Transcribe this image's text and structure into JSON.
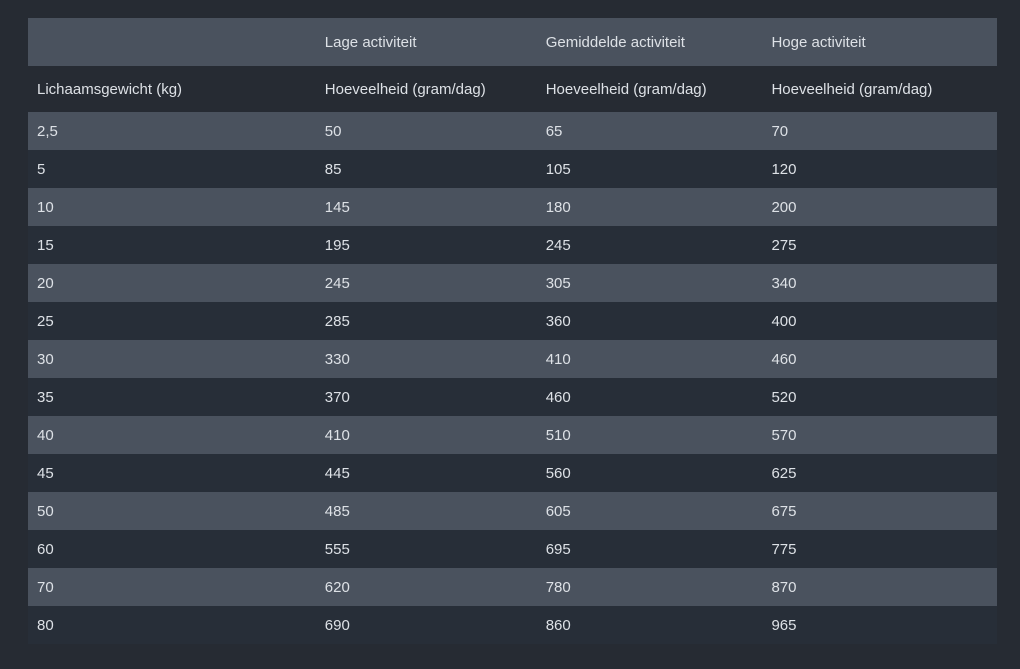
{
  "colors": {
    "page_background": "#262b33",
    "row_light": "#4a525e",
    "row_dark": "#272e38",
    "text": "#dde1e6"
  },
  "chart_data": {
    "type": "table",
    "activity_headers": [
      "",
      "Lage activiteit",
      "Gemiddelde activiteit",
      "Hoge activiteit"
    ],
    "unit_headers": [
      "Lichaamsgewicht (kg)",
      "Hoeveelheid (gram/dag)",
      "Hoeveelheid (gram/dag)",
      "Hoeveelheid (gram/dag)"
    ],
    "rows": [
      [
        "2,5",
        "50",
        "65",
        "70"
      ],
      [
        "5",
        "85",
        "105",
        "120"
      ],
      [
        "10",
        "145",
        "180",
        "200"
      ],
      [
        "15",
        "195",
        "245",
        "275"
      ],
      [
        "20",
        "245",
        "305",
        "340"
      ],
      [
        "25",
        "285",
        "360",
        "400"
      ],
      [
        "30",
        "330",
        "410",
        "460"
      ],
      [
        "35",
        "370",
        "460",
        "520"
      ],
      [
        "40",
        "410",
        "510",
        "570"
      ],
      [
        "45",
        "445",
        "560",
        "625"
      ],
      [
        "50",
        "485",
        "605",
        "675"
      ],
      [
        "60",
        "555",
        "695",
        "775"
      ],
      [
        "70",
        "620",
        "780",
        "870"
      ],
      [
        "80",
        "690",
        "860",
        "965"
      ]
    ]
  }
}
